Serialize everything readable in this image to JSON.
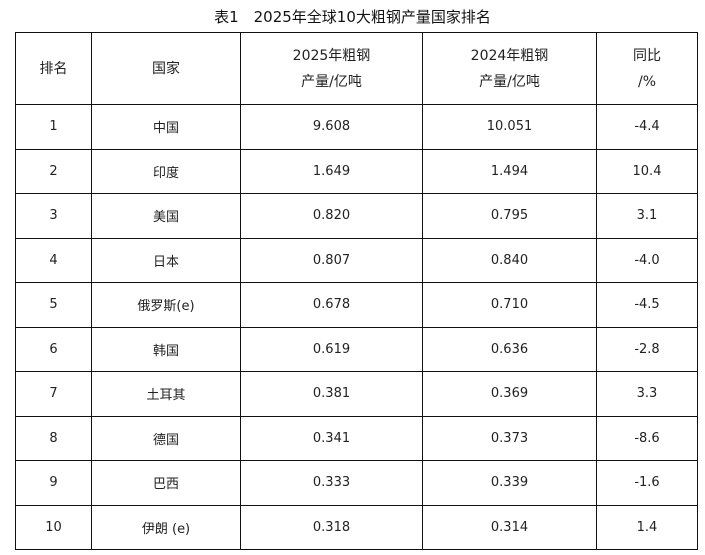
{
  "title": "表1　2025年全球10大粗钢产量国家排名",
  "headers": [
    {
      "line1": "排名",
      "line2": ""
    },
    {
      "line1": "国家",
      "line2": ""
    },
    {
      "line1": "2025年粗钢",
      "line2": "产量/亿吨"
    },
    {
      "line1": "2024年粗钢",
      "line2": "产量/亿吨"
    },
    {
      "line1": "同比",
      "line2": "/%"
    }
  ],
  "rows": [
    [
      "1",
      "中国",
      "9.608",
      "10.051",
      "-4.4"
    ],
    [
      "2",
      "印度",
      "1.649",
      "1.494",
      "10.4"
    ],
    [
      "3",
      "美国",
      "0.820",
      "0.795",
      "3.1"
    ],
    [
      "4",
      "日本",
      "0.807",
      "0.840",
      "-4.0"
    ],
    [
      "5",
      "俄罗斯(e)",
      "0.678",
      "0.710",
      "-4.5"
    ],
    [
      "6",
      "韩国",
      "0.619",
      "0.636",
      "-2.8"
    ],
    [
      "7",
      "土耳其",
      "0.381",
      "0.369",
      "3.3"
    ],
    [
      "8",
      "德国",
      "0.341",
      "0.373",
      "-8.6"
    ],
    [
      "9",
      "巴西",
      "0.333",
      "0.339",
      "-1.6"
    ],
    [
      "10",
      "伊朗 (e)",
      "0.318",
      "0.314",
      "1.4"
    ]
  ]
}
